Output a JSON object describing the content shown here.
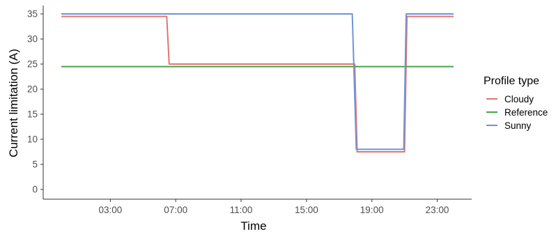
{
  "chart_data": {
    "type": "line",
    "title": "",
    "xlabel": "Time",
    "ylabel": "Current limitation (A)",
    "x_unit": "hours",
    "xlim": [
      0,
      24
    ],
    "ylim": [
      0,
      35
    ],
    "xticks": [
      {
        "value": 3,
        "label": "03:00"
      },
      {
        "value": 7,
        "label": "07:00"
      },
      {
        "value": 11,
        "label": "11:00"
      },
      {
        "value": 15,
        "label": "15:00"
      },
      {
        "value": 19,
        "label": "19:00"
      },
      {
        "value": 23,
        "label": "23:00"
      }
    ],
    "yticks": [
      0,
      5,
      10,
      15,
      20,
      25,
      30,
      35
    ],
    "grid": false,
    "legend": {
      "title": "Profile type",
      "position": "right",
      "entries": [
        "Cloudy",
        "Reference",
        "Sunny"
      ]
    },
    "series": [
      {
        "name": "Cloudy",
        "color": "#e0766e",
        "points": [
          [
            0,
            34.5
          ],
          [
            6.45,
            34.5
          ],
          [
            6.6,
            25
          ],
          [
            17.95,
            25
          ],
          [
            18.1,
            7.5
          ],
          [
            21.0,
            7.5
          ],
          [
            21.15,
            34.5
          ],
          [
            24.0,
            34.5
          ]
        ]
      },
      {
        "name": "Reference",
        "color": "#44a34c",
        "points": [
          [
            0,
            24.5
          ],
          [
            24.0,
            24.5
          ]
        ]
      },
      {
        "name": "Sunny",
        "color": "#6f93d8",
        "points": [
          [
            0,
            35
          ],
          [
            17.8,
            35
          ],
          [
            18.05,
            8
          ],
          [
            20.95,
            8
          ],
          [
            21.1,
            35
          ],
          [
            24.0,
            35
          ]
        ]
      }
    ]
  }
}
